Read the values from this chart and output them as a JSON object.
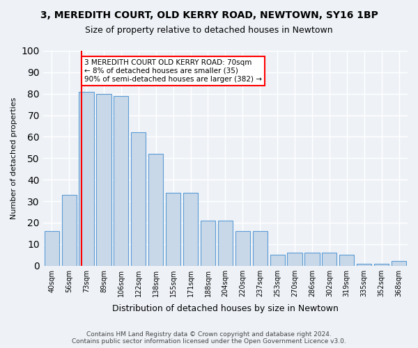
{
  "title": "3, MEREDITH COURT, OLD KERRY ROAD, NEWTOWN, SY16 1BP",
  "subtitle": "Size of property relative to detached houses in Newtown",
  "xlabel": "Distribution of detached houses by size in Newtown",
  "ylabel": "Number of detached properties",
  "bar_labels": [
    "40sqm",
    "56sqm",
    "73sqm",
    "89sqm",
    "106sqm",
    "122sqm",
    "138sqm",
    "155sqm",
    "171sqm",
    "188sqm",
    "204sqm",
    "220sqm",
    "237sqm",
    "253sqm",
    "270sqm",
    "286sqm",
    "302sqm",
    "319sqm",
    "335sqm",
    "352sqm",
    "368sqm"
  ],
  "bar_heights": [
    16,
    33,
    81,
    80,
    79,
    62,
    52,
    34,
    34,
    21,
    21,
    16,
    16,
    5,
    6,
    6,
    6,
    5,
    1,
    1,
    2
  ],
  "bar_color": "#c8d8e8",
  "bar_edge_color": "#5b9bd5",
  "vline_color": "red",
  "vline_pos": 1.7,
  "annotation_text": "3 MEREDITH COURT OLD KERRY ROAD: 70sqm\n← 8% of detached houses are smaller (35)\n90% of semi-detached houses are larger (382) →",
  "annotation_box_color": "white",
  "annotation_border_color": "red",
  "ylim": [
    0,
    100
  ],
  "yticks": [
    0,
    10,
    20,
    30,
    40,
    50,
    60,
    70,
    80,
    90,
    100
  ],
  "footer_line1": "Contains HM Land Registry data © Crown copyright and database right 2024.",
  "footer_line2": "Contains public sector information licensed under the Open Government Licence v3.0.",
  "bg_color": "#eef2f7",
  "grid_color": "white"
}
